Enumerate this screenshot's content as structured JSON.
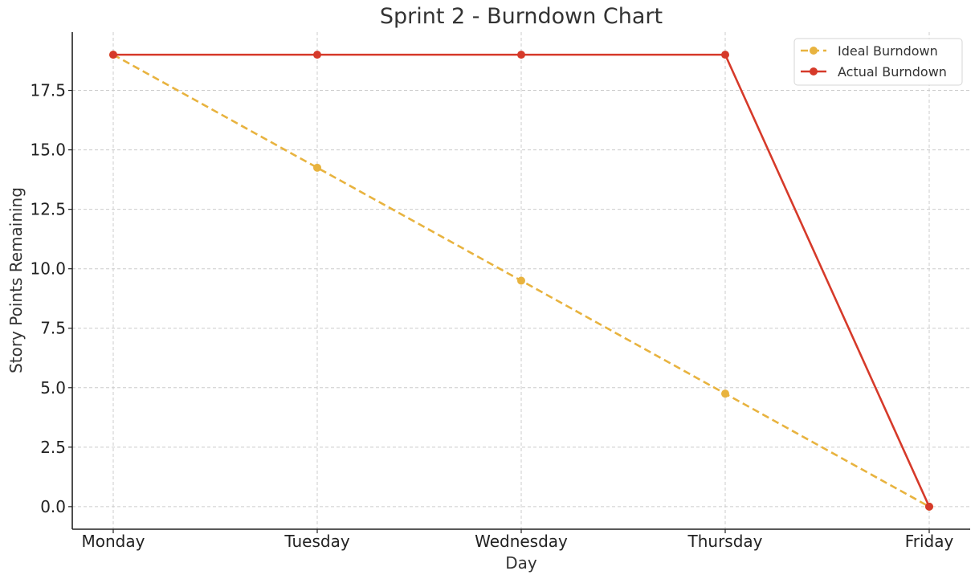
{
  "chart_data": {
    "type": "line",
    "title": "Sprint 2 - Burndown Chart",
    "xlabel": "Day",
    "ylabel": "Story Points Remaining",
    "categories": [
      "Monday",
      "Tuesday",
      "Wednesday",
      "Thursday",
      "Friday"
    ],
    "ylim": [
      -0.95,
      19.95
    ],
    "yticks": [
      "0.0",
      "2.5",
      "5.0",
      "7.5",
      "10.0",
      "12.5",
      "15.0",
      "17.5"
    ],
    "grid": true,
    "legend_position": "top-right",
    "series": [
      {
        "name": "Ideal Burndown",
        "values": [
          19,
          14.25,
          9.5,
          4.75,
          0
        ],
        "color": "#e8b33f",
        "style": "dashed"
      },
      {
        "name": "Actual Burndown",
        "values": [
          19,
          19,
          19,
          19,
          0
        ],
        "color": "#d63a2a",
        "style": "solid"
      }
    ]
  }
}
